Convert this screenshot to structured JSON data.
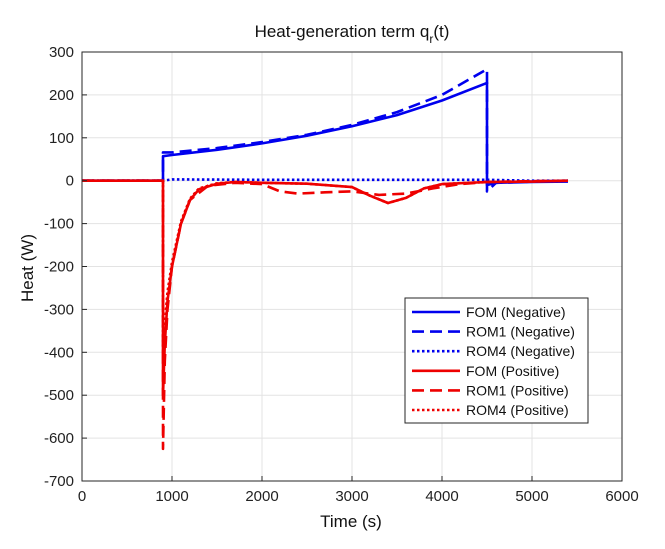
{
  "chart_data": {
    "type": "line",
    "title": "Heat-generation term q",
    "title_subscript": "r",
    "title_suffix": "(t)",
    "xlabel": "Time (s)",
    "ylabel": "Heat (W)",
    "xlim": [
      0,
      6000
    ],
    "ylim": [
      -700,
      300
    ],
    "xticks": [
      0,
      1000,
      2000,
      3000,
      4000,
      5000,
      6000
    ],
    "yticks": [
      -700,
      -600,
      -500,
      -400,
      -300,
      -200,
      -100,
      0,
      100,
      200,
      300
    ],
    "grid": true,
    "legend_position": "lower-right",
    "colors": {
      "blue": "#0000ee",
      "red": "#ee0000"
    },
    "series": [
      {
        "name": "FOM (Negative)",
        "color": "#0000ee",
        "style": "solid",
        "x": [
          0,
          900,
          900,
          1000,
          1500,
          2000,
          2500,
          3000,
          3500,
          4000,
          4500,
          4500,
          4600,
          5000,
          5400
        ],
        "y": [
          0,
          0,
          57,
          60,
          72,
          87,
          105,
          127,
          153,
          187,
          228,
          -10,
          -5,
          -3,
          -2
        ]
      },
      {
        "name": "ROM1 (Negative)",
        "color": "#0000ee",
        "style": "dashed",
        "x": [
          0,
          900,
          900,
          1000,
          1500,
          2000,
          2500,
          3000,
          3500,
          4000,
          4500,
          4500,
          4600,
          5000,
          5400
        ],
        "y": [
          0,
          0,
          66,
          66,
          76,
          90,
          107,
          130,
          160,
          200,
          260,
          -25,
          -5,
          -2,
          0
        ]
      },
      {
        "name": "ROM4 (Negative)",
        "color": "#0000ee",
        "style": "dotted",
        "x": [
          0,
          900,
          1000,
          2000,
          3000,
          4000,
          4500,
          5000,
          5400
        ],
        "y": [
          0,
          0,
          3,
          2,
          2,
          2,
          2,
          0,
          0
        ]
      },
      {
        "name": "FOM (Positive)",
        "color": "#ee0000",
        "style": "solid",
        "x": [
          0,
          900,
          900,
          920,
          950,
          1000,
          1100,
          1200,
          1300,
          1500,
          1700,
          2000,
          2500,
          3000,
          3200,
          3400,
          3600,
          3800,
          4000,
          4500,
          5000,
          5400
        ],
        "y": [
          0,
          0,
          -500,
          -380,
          -280,
          -200,
          -100,
          -45,
          -20,
          -7,
          -3,
          -5,
          -7,
          -15,
          -35,
          -52,
          -40,
          -18,
          -8,
          -3,
          -2,
          0
        ]
      },
      {
        "name": "ROM1 (Positive)",
        "color": "#ee0000",
        "style": "dashed",
        "x": [
          0,
          900,
          900,
          920,
          950,
          1000,
          1100,
          1200,
          1400,
          1700,
          2000,
          2200,
          2400,
          2700,
          3000,
          3300,
          3600,
          3900,
          4200,
          4500,
          5000,
          5400
        ],
        "y": [
          0,
          0,
          -625,
          -420,
          -300,
          -200,
          -100,
          -45,
          -12,
          -5,
          -8,
          -25,
          -30,
          -27,
          -25,
          -33,
          -30,
          -18,
          -8,
          -3,
          -1,
          0
        ]
      },
      {
        "name": "ROM4 (Positive)",
        "color": "#ee0000",
        "style": "dotted",
        "x": [
          0,
          900,
          900,
          920,
          950,
          1000,
          1100,
          1200,
          1300,
          1500,
          1700,
          2000,
          2500,
          3000,
          3200,
          3400,
          3600,
          3800,
          4000,
          4500,
          5000,
          5400
        ],
        "y": [
          0,
          0,
          -400,
          -330,
          -260,
          -190,
          -95,
          -42,
          -18,
          -6,
          -3,
          -5,
          -7,
          -15,
          -35,
          -52,
          -40,
          -18,
          -8,
          -3,
          -2,
          0
        ]
      }
    ]
  }
}
